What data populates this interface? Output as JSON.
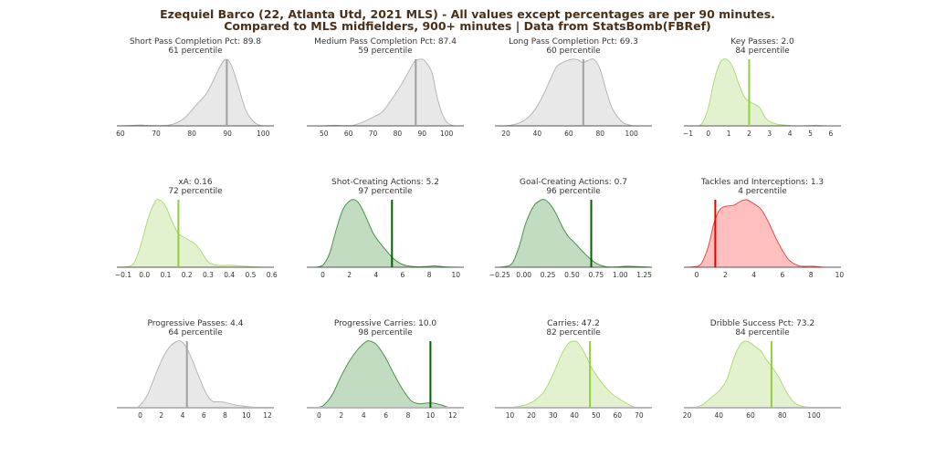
{
  "title_line1": "Ezequiel Barco (22, Atlanta Utd, 2021 MLS) - All values except percentages are per 90 minutes.",
  "title_line2": "Compared to MLS midfielders, 900+ minutes | Data from StatsBomb(FBRef)",
  "colors": {
    "title": "#4a3018",
    "grey_line": "#a0a0a0",
    "grey_fill": "#e8e8e8",
    "grey_edge": "#b0b0b0",
    "lightgreen_line": "#8fcf3c",
    "lightgreen_fill": "#e2f2cf",
    "lightgreen_edge": "#a6d96a",
    "darkgreen_line": "#006400",
    "darkgreen_fill": "#c2dcc2",
    "darkgreen_edge": "#3a8a3a",
    "red_line": "#e60000",
    "red_fill": "#ffbfbf",
    "red_edge": "#e83a3a"
  },
  "chart_data": [
    {
      "type": "area",
      "title": "Short Pass Completion Pct: 89.8",
      "subtitle": "61 percentile",
      "value": 89.8,
      "percentile": 61,
      "color": "grey",
      "xlim": [
        59,
        103
      ],
      "ticks": [
        60,
        70,
        80,
        90,
        100
      ],
      "density_x": [
        59,
        62,
        64,
        66,
        68,
        72,
        75,
        78,
        81,
        84,
        86,
        88,
        89.5,
        91,
        93,
        95,
        97,
        98.5,
        100,
        103
      ],
      "density_y": [
        0,
        0.005,
        0.01,
        0.012,
        0.006,
        0.005,
        0.03,
        0.12,
        0.3,
        0.48,
        0.68,
        0.9,
        1.0,
        0.92,
        0.6,
        0.25,
        0.08,
        0.02,
        0,
        0
      ]
    },
    {
      "type": "area",
      "title": "Medium Pass Completion Pct: 87.4",
      "subtitle": "59 percentile",
      "value": 87.4,
      "percentile": 59,
      "color": "grey",
      "xlim": [
        43,
        107
      ],
      "ticks": [
        50,
        60,
        70,
        80,
        90,
        100
      ],
      "density_x": [
        43,
        50,
        54,
        58,
        62,
        66,
        70,
        74,
        78,
        82,
        85,
        87,
        89,
        91,
        94,
        96,
        98,
        100,
        103,
        107
      ],
      "density_y": [
        0,
        0.003,
        0.01,
        0.004,
        0.01,
        0.06,
        0.13,
        0.22,
        0.42,
        0.65,
        0.85,
        0.97,
        1.0,
        0.98,
        0.8,
        0.45,
        0.2,
        0.06,
        0,
        0
      ]
    },
    {
      "type": "area",
      "title": "Long Pass Completion Pct: 69.3",
      "subtitle": "60 percentile",
      "value": 69.3,
      "percentile": 60,
      "color": "grey",
      "xlim": [
        13,
        113
      ],
      "ticks": [
        20,
        40,
        60,
        80,
        100
      ],
      "density_x": [
        13,
        22,
        30,
        36,
        42,
        48,
        52,
        56,
        62,
        66,
        69,
        72,
        76,
        80,
        84,
        88,
        94,
        98,
        102,
        113
      ],
      "density_y": [
        0,
        0.005,
        0.06,
        0.17,
        0.38,
        0.68,
        0.88,
        0.95,
        1.0,
        0.99,
        0.95,
        0.98,
        1.0,
        0.85,
        0.52,
        0.25,
        0.06,
        0.02,
        0,
        0
      ]
    },
    {
      "type": "area",
      "title": "Key Passes: 2.0",
      "subtitle": "84 percentile",
      "value": 2.0,
      "percentile": 84,
      "color": "lightgreen",
      "xlim": [
        -1.2,
        6.5
      ],
      "ticks": [
        -1,
        0,
        1,
        2,
        3,
        4,
        5,
        6
      ],
      "density_x": [
        -1.2,
        -0.6,
        -0.3,
        0,
        0.3,
        0.6,
        0.9,
        1.2,
        1.5,
        1.8,
        2.1,
        2.5,
        2.8,
        3.2,
        3.8,
        4.5,
        5,
        5.3,
        5.7,
        6.5
      ],
      "density_y": [
        0,
        0,
        0.04,
        0.28,
        0.7,
        0.96,
        1.0,
        0.88,
        0.62,
        0.42,
        0.35,
        0.28,
        0.12,
        0.04,
        0.01,
        0,
        0.005,
        0.01,
        0,
        0
      ]
    },
    {
      "type": "area",
      "title": "xA: 0.16",
      "subtitle": "72 percentile",
      "value": 0.16,
      "percentile": 72,
      "color": "lightgreen",
      "xlim": [
        -0.13,
        0.61
      ],
      "ticks": [
        -0.1,
        0.0,
        0.1,
        0.2,
        0.3,
        0.4,
        0.5,
        0.6
      ],
      "density_x": [
        -0.13,
        -0.08,
        -0.05,
        -0.02,
        0.02,
        0.05,
        0.07,
        0.1,
        0.13,
        0.16,
        0.2,
        0.24,
        0.27,
        0.3,
        0.34,
        0.4,
        0.45,
        0.5,
        0.56,
        0.61
      ],
      "density_y": [
        0,
        0.01,
        0.06,
        0.3,
        0.75,
        0.97,
        1.0,
        0.9,
        0.68,
        0.5,
        0.42,
        0.34,
        0.22,
        0.08,
        0.03,
        0.03,
        0.02,
        0.01,
        0,
        0
      ]
    },
    {
      "type": "area",
      "title": "Shot-Creating Actions: 5.2",
      "subtitle": "97 percentile",
      "value": 5.2,
      "percentile": 97,
      "color": "darkgreen",
      "xlim": [
        -1.2,
        10.6
      ],
      "ticks": [
        0,
        2,
        4,
        6,
        8,
        10
      ],
      "density_x": [
        -1.2,
        -0.6,
        0,
        0.5,
        1,
        1.5,
        2,
        2.4,
        2.8,
        3.3,
        3.8,
        4.3,
        4.8,
        5.3,
        6,
        6.8,
        7.6,
        8.4,
        9.2,
        10.6
      ],
      "density_y": [
        0,
        0,
        0.03,
        0.2,
        0.55,
        0.85,
        0.98,
        1.0,
        0.92,
        0.72,
        0.5,
        0.36,
        0.24,
        0.13,
        0.04,
        0.01,
        0.01,
        0.02,
        0.005,
        0
      ]
    },
    {
      "type": "area",
      "title": "Goal-Creating Actions: 0.7",
      "subtitle": "96 percentile",
      "value": 0.7,
      "percentile": 96,
      "color": "darkgreen",
      "xlim": [
        -0.3,
        1.33
      ],
      "ticks": [
        -0.25,
        0.0,
        0.25,
        0.5,
        0.75,
        1.0,
        1.25
      ],
      "density_x": [
        -0.3,
        -0.2,
        -0.12,
        -0.05,
        0.02,
        0.1,
        0.17,
        0.22,
        0.28,
        0.34,
        0.4,
        0.46,
        0.53,
        0.6,
        0.67,
        0.75,
        0.85,
        0.95,
        1.1,
        1.33
      ],
      "density_y": [
        0,
        0.01,
        0.06,
        0.3,
        0.65,
        0.9,
        0.99,
        1.0,
        0.92,
        0.78,
        0.6,
        0.46,
        0.36,
        0.25,
        0.15,
        0.06,
        0.01,
        0.005,
        0.015,
        0
      ]
    },
    {
      "type": "area",
      "title": "Tackles and Interceptions: 1.3",
      "subtitle": "4 percentile",
      "value": 1.3,
      "percentile": 4,
      "color": "red",
      "xlim": [
        -0.9,
        10.1
      ],
      "ticks": [
        0,
        2,
        4,
        6,
        8,
        10
      ],
      "density_x": [
        -0.9,
        -0.3,
        0.3,
        0.8,
        1.2,
        1.6,
        2,
        2.6,
        3.1,
        3.5,
        4,
        4.5,
        5,
        5.5,
        6,
        6.5,
        7.2,
        8.2,
        9,
        10.1
      ],
      "density_y": [
        0,
        0.005,
        0.05,
        0.3,
        0.65,
        0.85,
        0.9,
        0.92,
        0.98,
        1.0,
        0.94,
        0.86,
        0.68,
        0.45,
        0.25,
        0.1,
        0.02,
        0.015,
        0,
        0
      ]
    },
    {
      "type": "area",
      "title": "Progressive Passes: 4.4",
      "subtitle": "64 percentile",
      "value": 4.4,
      "percentile": 64,
      "color": "grey",
      "xlim": [
        -2.2,
        12.6
      ],
      "ticks": [
        0,
        2,
        4,
        6,
        8,
        10,
        12
      ],
      "density_x": [
        -2.2,
        -0.5,
        0,
        0.7,
        1.4,
        2.1,
        2.8,
        3.4,
        3.8,
        4.3,
        4.9,
        5.5,
        6.2,
        6.8,
        7.4,
        8,
        9,
        10,
        11,
        12.6
      ],
      "density_y": [
        0,
        0.005,
        0.04,
        0.2,
        0.48,
        0.74,
        0.92,
        0.99,
        1.0,
        0.92,
        0.72,
        0.48,
        0.22,
        0.1,
        0.09,
        0.08,
        0.04,
        0.02,
        0.005,
        0
      ]
    },
    {
      "type": "area",
      "title": "Progressive Carries: 10.0",
      "subtitle": "98 percentile",
      "value": 10.0,
      "percentile": 98,
      "color": "darkgreen",
      "xlim": [
        -1.1,
        13.0
      ],
      "ticks": [
        0,
        2,
        4,
        6,
        8,
        10,
        12
      ],
      "density_x": [
        -1.1,
        0,
        0.5,
        1.2,
        2,
        2.8,
        3.5,
        4.2,
        4.6,
        5.2,
        6,
        6.8,
        7.6,
        8.3,
        9,
        9.6,
        10.3,
        11,
        11.7,
        13.0
      ],
      "density_y": [
        0,
        0.01,
        0.05,
        0.2,
        0.48,
        0.72,
        0.88,
        0.99,
        1.0,
        0.94,
        0.74,
        0.48,
        0.25,
        0.1,
        0.06,
        0.07,
        0.07,
        0.04,
        0.005,
        0
      ]
    },
    {
      "type": "area",
      "title": "Carries: 47.2",
      "subtitle": "82 percentile",
      "value": 47.2,
      "percentile": 82,
      "color": "lightgreen",
      "xlim": [
        3,
        76
      ],
      "ticks": [
        10,
        20,
        30,
        40,
        50,
        60,
        70
      ],
      "density_x": [
        3,
        10,
        14,
        18,
        22,
        26,
        30,
        34,
        37,
        40,
        42,
        45,
        48,
        51,
        54,
        57,
        60,
        64,
        68,
        76
      ],
      "density_y": [
        0,
        0.005,
        0.02,
        0.05,
        0.12,
        0.25,
        0.5,
        0.8,
        0.96,
        1.0,
        0.96,
        0.8,
        0.6,
        0.45,
        0.32,
        0.22,
        0.15,
        0.07,
        0.01,
        0
      ]
    },
    {
      "type": "area",
      "title": "Dribble Success Pct: 73.2",
      "subtitle": "84 percentile",
      "value": 73.2,
      "percentile": 84,
      "color": "lightgreen",
      "xlim": [
        18,
        117
      ],
      "ticks": [
        20,
        40,
        60,
        80,
        100
      ],
      "density_x": [
        18,
        25,
        30,
        35,
        40,
        45,
        50,
        54,
        57,
        60,
        64,
        67,
        70,
        74,
        78,
        83,
        88,
        93,
        100,
        117
      ],
      "density_y": [
        0,
        0.005,
        0.05,
        0.15,
        0.25,
        0.42,
        0.78,
        0.96,
        1.0,
        0.97,
        0.9,
        0.84,
        0.72,
        0.6,
        0.45,
        0.22,
        0.07,
        0.02,
        0.005,
        0
      ]
    }
  ]
}
